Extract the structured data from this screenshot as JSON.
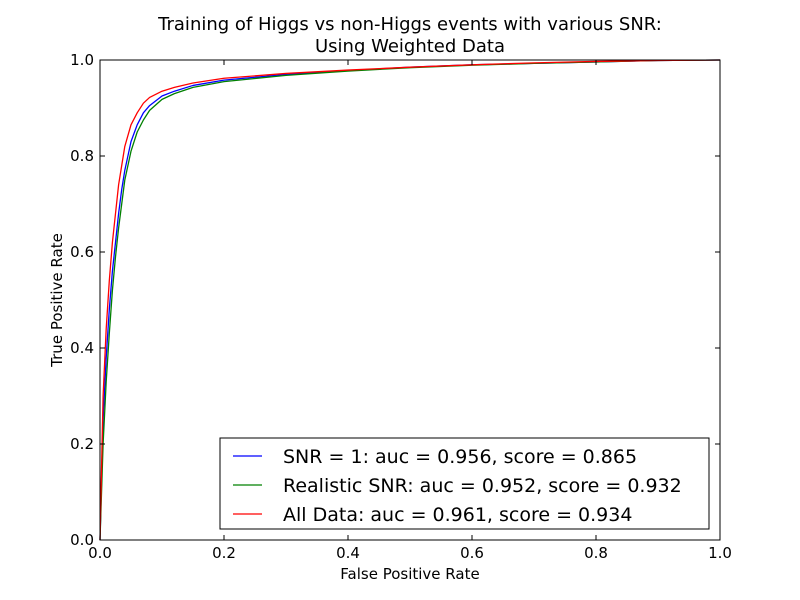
{
  "chart_data": {
    "type": "line",
    "title": [
      "Training of Higgs vs non-Higgs events with various SNR:",
      "Using Weighted Data"
    ],
    "xlabel": "False Positive Rate",
    "ylabel": "True Positive Rate",
    "xlim": [
      0.0,
      1.0
    ],
    "ylim": [
      0.0,
      1.0
    ],
    "xticks": [
      "0.0",
      "0.2",
      "0.4",
      "0.6",
      "0.8",
      "1.0"
    ],
    "yticks": [
      "0.0",
      "0.2",
      "0.4",
      "0.6",
      "0.8",
      "1.0"
    ],
    "grid": false,
    "legend_position": "bottom-right",
    "series": [
      {
        "name": "SNR = 1: auc = 0.956, score = 0.865",
        "color": "#0000ff",
        "x": [
          0,
          0.005,
          0.01,
          0.015,
          0.02,
          0.025,
          0.03,
          0.035,
          0.04,
          0.05,
          0.06,
          0.07,
          0.08,
          0.1,
          0.12,
          0.15,
          0.2,
          0.3,
          0.4,
          0.5,
          0.6,
          0.7,
          0.8,
          0.9,
          1.0
        ],
        "y": [
          0,
          0.25,
          0.38,
          0.48,
          0.56,
          0.62,
          0.68,
          0.73,
          0.77,
          0.83,
          0.865,
          0.89,
          0.905,
          0.925,
          0.935,
          0.947,
          0.958,
          0.97,
          0.978,
          0.985,
          0.99,
          0.993,
          0.996,
          0.999,
          1.0
        ]
      },
      {
        "name": "Realistic SNR: auc = 0.952, score = 0.932",
        "color": "#008000",
        "x": [
          0,
          0.005,
          0.01,
          0.015,
          0.02,
          0.025,
          0.03,
          0.035,
          0.04,
          0.05,
          0.06,
          0.07,
          0.08,
          0.1,
          0.12,
          0.15,
          0.2,
          0.3,
          0.4,
          0.5,
          0.6,
          0.7,
          0.8,
          0.9,
          1.0
        ],
        "y": [
          0,
          0.2,
          0.33,
          0.43,
          0.52,
          0.59,
          0.65,
          0.7,
          0.75,
          0.81,
          0.85,
          0.875,
          0.895,
          0.918,
          0.93,
          0.943,
          0.955,
          0.968,
          0.977,
          0.984,
          0.989,
          0.993,
          0.996,
          0.999,
          1.0
        ]
      },
      {
        "name": "All Data: auc = 0.961, score = 0.934",
        "color": "#ff0000",
        "x": [
          0,
          0.005,
          0.01,
          0.015,
          0.02,
          0.025,
          0.03,
          0.035,
          0.04,
          0.05,
          0.06,
          0.07,
          0.08,
          0.1,
          0.12,
          0.15,
          0.2,
          0.3,
          0.4,
          0.5,
          0.6,
          0.7,
          0.8,
          0.9,
          1.0
        ],
        "y": [
          0,
          0.3,
          0.44,
          0.54,
          0.62,
          0.68,
          0.74,
          0.78,
          0.82,
          0.865,
          0.89,
          0.91,
          0.922,
          0.935,
          0.943,
          0.952,
          0.962,
          0.972,
          0.979,
          0.985,
          0.99,
          0.994,
          0.997,
          0.999,
          1.0
        ]
      }
    ]
  }
}
